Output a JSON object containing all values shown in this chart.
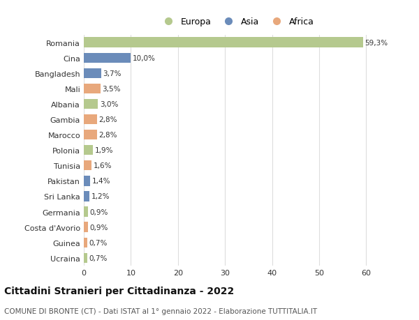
{
  "categories": [
    "Ucraina",
    "Guinea",
    "Costa d'Avorio",
    "Germania",
    "Sri Lanka",
    "Pakistan",
    "Tunisia",
    "Polonia",
    "Marocco",
    "Gambia",
    "Albania",
    "Mali",
    "Bangladesh",
    "Cina",
    "Romania"
  ],
  "values": [
    0.7,
    0.7,
    0.9,
    0.9,
    1.2,
    1.4,
    1.6,
    1.9,
    2.8,
    2.8,
    3.0,
    3.5,
    3.7,
    10.0,
    59.3
  ],
  "labels": [
    "0,7%",
    "0,7%",
    "0,9%",
    "0,9%",
    "1,2%",
    "1,4%",
    "1,6%",
    "1,9%",
    "2,8%",
    "2,8%",
    "3,0%",
    "3,5%",
    "3,7%",
    "10,0%",
    "59,3%"
  ],
  "colors": [
    "#b5c98e",
    "#e8a87c",
    "#e8a87c",
    "#b5c98e",
    "#6b8cba",
    "#6b8cba",
    "#e8a87c",
    "#b5c98e",
    "#e8a87c",
    "#e8a87c",
    "#b5c98e",
    "#e8a87c",
    "#6b8cba",
    "#6b8cba",
    "#b5c98e"
  ],
  "legend_labels": [
    "Europa",
    "Asia",
    "Africa"
  ],
  "legend_colors": [
    "#b5c98e",
    "#6b8cba",
    "#e8a87c"
  ],
  "title": "Cittadini Stranieri per Cittadinanza - 2022",
  "subtitle": "COMUNE DI BRONTE (CT) - Dati ISTAT al 1° gennaio 2022 - Elaborazione TUTTITALIA.IT",
  "xlim": [
    0,
    65
  ],
  "xticks": [
    0,
    10,
    20,
    30,
    40,
    50,
    60
  ],
  "background_color": "#ffffff",
  "grid_color": "#dddddd",
  "bar_height": 0.65
}
